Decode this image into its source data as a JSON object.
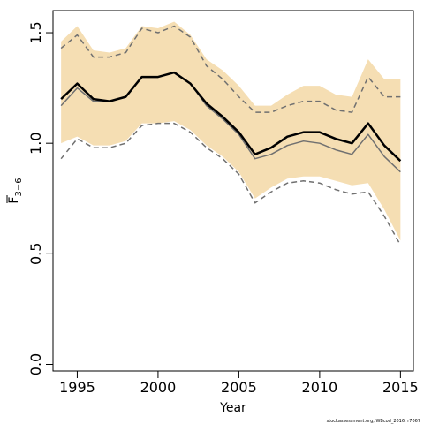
{
  "chart_data": {
    "type": "line",
    "xlabel": "Year",
    "ylabel_main": "F",
    "ylabel_sub": "3−6",
    "xlim": [
      1993.5,
      2015.8
    ],
    "ylim": [
      -0.03,
      1.6
    ],
    "x_ticks": [
      1995,
      2000,
      2005,
      2010,
      2015
    ],
    "y_ticks": [
      0.0,
      0.5,
      1.0,
      1.5
    ],
    "y_tick_labels": [
      "0.0",
      "0.5",
      "1.0",
      "1.5"
    ],
    "grid": false,
    "x": [
      1994,
      1995,
      1996,
      1997,
      1998,
      1999,
      2000,
      2001,
      2002,
      2003,
      2004,
      2005,
      2006,
      2007,
      2008,
      2009,
      2010,
      2011,
      2012,
      2013,
      2014,
      2015
    ],
    "band": {
      "color": "#f5deb3",
      "upper": [
        1.46,
        1.53,
        1.42,
        1.41,
        1.43,
        1.53,
        1.52,
        1.55,
        1.49,
        1.38,
        1.33,
        1.26,
        1.17,
        1.17,
        1.22,
        1.26,
        1.26,
        1.22,
        1.21,
        1.38,
        1.29,
        1.29
      ],
      "lower": [
        1.0,
        1.03,
        0.99,
        0.99,
        1.01,
        1.09,
        1.09,
        1.1,
        1.06,
        0.99,
        0.94,
        0.87,
        0.75,
        0.8,
        0.84,
        0.85,
        0.85,
        0.83,
        0.81,
        0.82,
        0.7,
        0.56
      ]
    },
    "series": [
      {
        "role": "estimate",
        "color": "#000000",
        "values": [
          1.2,
          1.27,
          1.2,
          1.19,
          1.21,
          1.3,
          1.3,
          1.32,
          1.27,
          1.18,
          1.12,
          1.05,
          0.95,
          0.98,
          1.03,
          1.05,
          1.05,
          1.02,
          1.0,
          1.09,
          0.99,
          0.92
        ]
      },
      {
        "role": "median",
        "color": "#707070",
        "values": [
          1.17,
          1.25,
          1.19,
          1.19,
          1.21,
          1.3,
          1.3,
          1.32,
          1.27,
          1.17,
          1.11,
          1.04,
          0.93,
          0.95,
          0.99,
          1.01,
          1.0,
          0.97,
          0.95,
          1.04,
          0.94,
          0.87
        ]
      },
      {
        "role": "upper-ci",
        "color": "#707070",
        "dashed": true,
        "values": [
          1.43,
          1.49,
          1.39,
          1.39,
          1.41,
          1.52,
          1.5,
          1.53,
          1.48,
          1.35,
          1.29,
          1.21,
          1.14,
          1.14,
          1.17,
          1.19,
          1.19,
          1.15,
          1.14,
          1.3,
          1.21,
          1.21
        ]
      },
      {
        "role": "lower-ci",
        "color": "#707070",
        "dashed": true,
        "values": [
          0.93,
          1.02,
          0.98,
          0.98,
          1.0,
          1.08,
          1.09,
          1.09,
          1.05,
          0.98,
          0.93,
          0.86,
          0.73,
          0.78,
          0.82,
          0.83,
          0.82,
          0.79,
          0.77,
          0.78,
          0.67,
          0.54
        ]
      }
    ]
  },
  "credit": "stockassessment.org, WBcod_2016, r7067"
}
